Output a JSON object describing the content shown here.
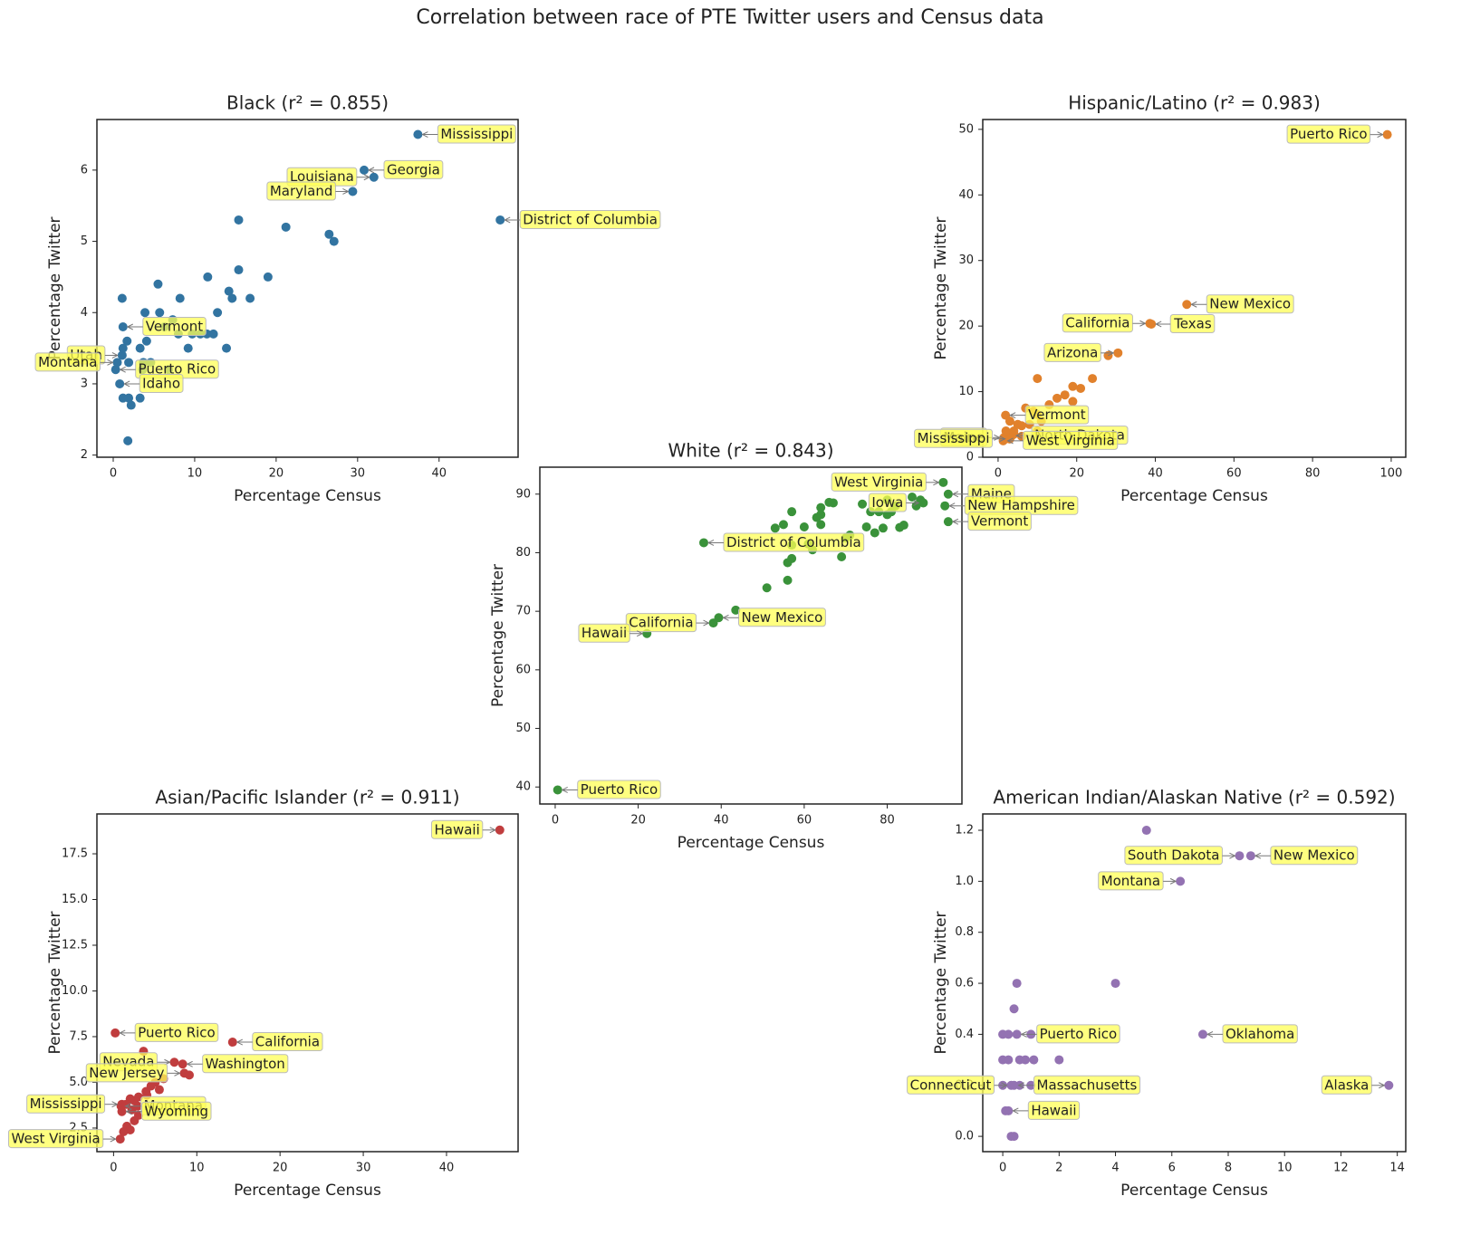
{
  "title": "Correlation between race of PTE Twitter users and Census data",
  "chart_data": [
    {
      "type": "scatter",
      "title": "Black (r² = 0.855)",
      "xlabel": "Percentage Census",
      "ylabel": "Percentage Twitter",
      "xlim": [
        -2,
        49.7
      ],
      "ylim": [
        1.97,
        6.71
      ],
      "xticks": [
        0,
        10,
        20,
        30,
        40
      ],
      "yticks": [
        2,
        3,
        4,
        5,
        6
      ],
      "series": [
        {
          "color": "#3274a1",
          "x": [
            37.4,
            30.8,
            32.0,
            29.4,
            47.5,
            1.2,
            1.1,
            0.5,
            0.3,
            0.8,
            15.4,
            21.2,
            26.5,
            27.1,
            15.4,
            19,
            11.6,
            5.5,
            1.1,
            8.2,
            14.2,
            14.6,
            16.8,
            3.9,
            5.7,
            12.8,
            7.3,
            6.3,
            8,
            9.7,
            10.7,
            11.5,
            12.3,
            4.1,
            1.7,
            3.3,
            9.2,
            13.9,
            1.2,
            3.7,
            4.6,
            1.9,
            3.6,
            6.8,
            1.2,
            1.9,
            3.3,
            2.2,
            1.8
          ],
          "values": [
            6.5,
            6.0,
            5.9,
            5.7,
            5.3,
            3.8,
            3.4,
            3.3,
            3.2,
            3.0,
            5.3,
            5.2,
            5.1,
            5.0,
            4.6,
            4.5,
            4.5,
            4.4,
            4.2,
            4.2,
            4.3,
            4.2,
            4.2,
            4.0,
            4.0,
            4.0,
            3.9,
            3.8,
            3.7,
            3.7,
            3.7,
            3.7,
            3.7,
            3.6,
            3.6,
            3.5,
            3.5,
            3.5,
            3.5,
            3.3,
            3.3,
            3.3,
            3.2,
            3.2,
            2.8,
            2.8,
            2.8,
            2.7,
            2.2
          ],
          "labels": [
            "Mississippi",
            "Georgia",
            "Louisiana",
            "Maryland",
            "District of Columbia",
            "Vermont",
            "Utah",
            "Montana",
            "Puerto Rico",
            "Idaho",
            null,
            null,
            null,
            null,
            null,
            null,
            null,
            null,
            null,
            null,
            null,
            null,
            null,
            null,
            null,
            null,
            null,
            null,
            null,
            null,
            null,
            null,
            null,
            null,
            null,
            null,
            null,
            null,
            null,
            null,
            null,
            null,
            null,
            null,
            null,
            null,
            null,
            null,
            null
          ]
        }
      ]
    },
    {
      "type": "scatter",
      "title": "Hispanic/Latino (r² = 0.983)",
      "xlabel": "Percentage Census",
      "ylabel": "Percentage Twitter",
      "xlim": [
        -3.9,
        103.7
      ],
      "ylim": [
        0,
        51.5
      ],
      "xticks": [
        0,
        20,
        40,
        60,
        80,
        100
      ],
      "yticks": [
        0,
        10,
        20,
        30,
        40,
        50
      ],
      "series": [
        {
          "color": "#e1812c",
          "x": [
            99,
            48,
            39,
            38.6,
            30.5,
            1.9,
            1.5,
            2.9,
            3.5,
            1.3,
            28,
            24,
            10,
            21,
            19,
            17,
            15,
            13,
            19,
            10,
            7,
            9,
            3,
            5,
            6,
            8,
            4,
            11,
            10,
            2,
            4,
            6,
            3
          ],
          "values": [
            49.2,
            23.3,
            20.3,
            20.4,
            15.9,
            6.4,
            3,
            2.8,
            3.3,
            2.5,
            15.5,
            12,
            12,
            10.5,
            10.8,
            9.5,
            9,
            8,
            8.5,
            6.5,
            7.5,
            7,
            5.5,
            5,
            4.8,
            5,
            4,
            5.5,
            4,
            4,
            3.5,
            3.2,
            2.8
          ],
          "labels": [
            "Puerto Rico",
            "New Mexico",
            "Texas",
            "California",
            "Arizona",
            "Vermont",
            "Maine",
            "Mississippi",
            "North Dakota",
            "West Virginia",
            null,
            null,
            null,
            null,
            null,
            null,
            null,
            null,
            null,
            null,
            null,
            null,
            null,
            null,
            null,
            null,
            null,
            null,
            null,
            null,
            null,
            null,
            null
          ]
        }
      ]
    },
    {
      "type": "scatter",
      "title": "White (r² = 0.843)",
      "xlabel": "Percentage Census",
      "ylabel": "Percentage Twitter",
      "xlim": [
        -3.7,
        98
      ],
      "ylim": [
        37.1,
        94.6
      ],
      "xticks": [
        0,
        20,
        40,
        60,
        80
      ],
      "yticks": [
        40,
        50,
        60,
        70,
        80,
        90
      ],
      "series": [
        {
          "color": "#3a923a",
          "x": [
            93.5,
            94.7,
            88.7,
            93.9,
            94.7,
            35.8,
            39.4,
            38.1,
            22.1,
            0.6,
            43.5,
            51,
            56,
            56,
            57,
            57,
            61,
            62,
            64,
            64,
            64,
            66,
            67,
            53,
            55,
            57,
            60,
            63,
            69,
            70,
            71,
            74,
            75,
            76,
            77,
            78,
            79,
            80,
            81,
            83,
            84,
            87,
            88,
            86,
            80,
            82
          ],
          "values": [
            92,
            90,
            88.5,
            88,
            85.3,
            81.7,
            68.9,
            68.0,
            66.2,
            39.5,
            70.2,
            74,
            75.3,
            78.3,
            79,
            81.3,
            81.5,
            80.5,
            84.8,
            86.5,
            87.7,
            88.6,
            88.5,
            84.2,
            84.8,
            87,
            84.4,
            86,
            79.3,
            82.5,
            83,
            88.3,
            84.4,
            87,
            83.4,
            87,
            84.2,
            86.5,
            87,
            84.3,
            84.7,
            88,
            89,
            89.5,
            89,
            88
          ],
          "labels": [
            "West Virginia",
            "Maine",
            "Iowa",
            "New Hampshire",
            "Vermont",
            "District of Columbia",
            "New Mexico",
            "California",
            "Hawaii",
            "Puerto Rico",
            null,
            null,
            null,
            null,
            null,
            null,
            null,
            null,
            null,
            null,
            null,
            null,
            null,
            null,
            null,
            null,
            null,
            null,
            null,
            null,
            null,
            null,
            null,
            null,
            null,
            null,
            null,
            null,
            null,
            null,
            null,
            null,
            null,
            null,
            null,
            null
          ]
        }
      ]
    },
    {
      "type": "scatter",
      "title": "Asian/Pacific Islander (r² = 0.911)",
      "xlabel": "Percentage Census",
      "ylabel": "Percentage Twitter",
      "xlim": [
        -2,
        48.6
      ],
      "ylim": [
        1.21,
        19.68
      ],
      "xticks": [
        0,
        10,
        20,
        30,
        40
      ],
      "yticks": [
        2.5,
        {
          "value": 5,
          "label": "5.0"
        },
        7.5,
        {
          "value": 10,
          "label": "10.0"
        },
        12.5,
        {
          "value": 15,
          "label": "15.0"
        },
        17.5
      ],
      "series": [
        {
          "color": "#c03d3e",
          "x": [
            46.4,
            0.2,
            14.3,
            8.3,
            7.3,
            8.5,
            1.0,
            0.9,
            1.0,
            0.8,
            3.6,
            9.1,
            6,
            5,
            4.5,
            3.9,
            3,
            2.5,
            2,
            1.5,
            2.2,
            3,
            2.5,
            1.6,
            2,
            1.2,
            2.9,
            4,
            5.5
          ],
          "values": [
            18.8,
            7.7,
            7.2,
            6.0,
            6.1,
            5.5,
            3.8,
            3.7,
            3.4,
            1.9,
            6.7,
            5.4,
            5.2,
            5.0,
            4.8,
            4.5,
            4.2,
            4.0,
            4.1,
            3.8,
            3.5,
            3.2,
            2.9,
            2.6,
            2.4,
            2.3,
            3.7,
            4.3,
            4.6
          ],
          "labels": [
            "Hawaii",
            "Puerto Rico",
            "California",
            "Washington",
            "Nevada",
            "New Jersey",
            "Mississippi",
            "Montana",
            "Wyoming",
            "West Virginia",
            null,
            null,
            null,
            null,
            null,
            null,
            null,
            null,
            null,
            null,
            null,
            null,
            null,
            null,
            null,
            null,
            null,
            null,
            null
          ]
        }
      ]
    },
    {
      "type": "scatter",
      "title": "American Indian/Alaskan Native (r² = 0.592)",
      "xlabel": "Percentage Census",
      "ylabel": "Percentage Twitter",
      "xlim": [
        -0.71,
        14.3
      ],
      "ylim": [
        -0.06,
        1.264
      ],
      "xticks": [
        0,
        2,
        4,
        6,
        8,
        10,
        12,
        14
      ],
      "yticks": [
        {
          "value": 0,
          "label": "0.0"
        },
        0.2,
        0.4,
        0.6,
        0.8,
        {
          "value": 1,
          "label": "1.0"
        },
        1.2
      ],
      "series": [
        {
          "color": "#9372b2",
          "x": [
            8.4,
            8.8,
            6.3,
            7.1,
            13.7,
            0.5,
            0.3,
            0.4,
            0.2,
            5.1,
            4,
            0.5,
            0.4,
            0,
            0.2,
            1.0,
            0,
            0.2,
            0.6,
            0.8,
            1.1,
            2,
            0,
            0.6,
            1,
            0.1,
            0.3,
            0.4
          ],
          "values": [
            1.1,
            1.1,
            1.0,
            0.4,
            0.2,
            0.4,
            0.2,
            0.2,
            0.1,
            1.2,
            0.6,
            0.6,
            0.5,
            0.4,
            0.4,
            0.4,
            0.3,
            0.3,
            0.3,
            0.3,
            0.3,
            0.3,
            0.2,
            0.2,
            0.2,
            0.1,
            0,
            0
          ],
          "labels": [
            "South Dakota",
            "New Mexico",
            "Montana",
            "Oklahoma",
            "Alaska",
            "Puerto Rico",
            "Connecticut",
            "Massachusetts",
            "Hawaii",
            null,
            null,
            null,
            null,
            null,
            null,
            null,
            null,
            null,
            null,
            null,
            null,
            null,
            null,
            null,
            null,
            null,
            null,
            null
          ]
        }
      ]
    }
  ]
}
